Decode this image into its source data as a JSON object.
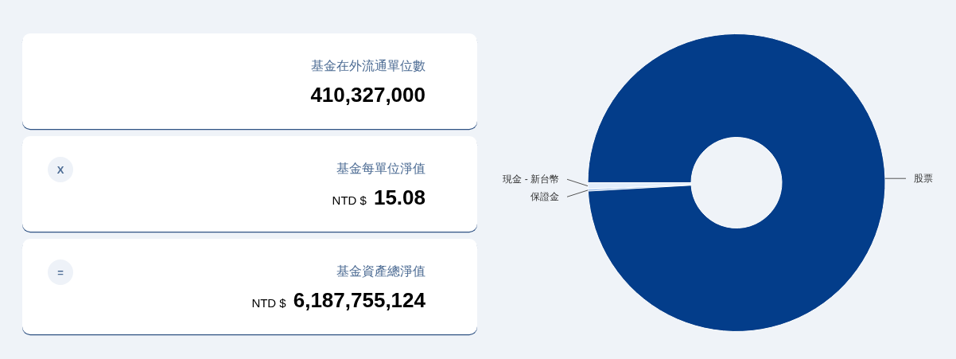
{
  "chart_data": [
    {
      "type": "other",
      "title": "基金在外流通單位數",
      "values": [
        410327000
      ],
      "value_labels": [
        "410,327,000"
      ]
    },
    {
      "type": "other",
      "title": "基金每單位淨值",
      "values": [
        15.08
      ],
      "value_labels": [
        "NTD $ 15.08"
      ],
      "annotations": [
        "X"
      ]
    },
    {
      "type": "other",
      "title": "基金資產總淨值",
      "values": [
        6187755124
      ],
      "value_labels": [
        "NTD $ 6,187,755,124"
      ],
      "annotations": [
        "="
      ]
    },
    {
      "type": "donut",
      "categories": [
        "現金 - 新台幣",
        "保證金",
        "股票"
      ],
      "values": [
        0.7,
        0.2,
        99.1
      ],
      "colors": [
        "#e3eefc",
        "#8db3e6",
        "#033d8a"
      ]
    }
  ]
}
